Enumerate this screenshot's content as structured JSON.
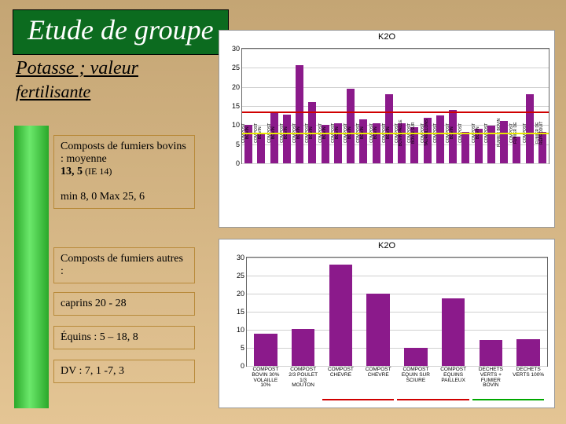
{
  "title": "Etude de groupe",
  "subtitle_line1": "Potasse ; valeur",
  "subtitle_line2": "fertilisante",
  "box1": {
    "line1": "Composts de fumiers bovins : moyenne",
    "line2_strong": "13, 5",
    "line2_rest": " (IE 14)",
    "line3": "min 8, 0  Max 25, 6"
  },
  "box2": {
    "line1": "Composts de fumiers autres :"
  },
  "box3": {
    "line1": "caprins 20 - 28"
  },
  "box4": {
    "line1": "Équins : 5 – 18, 8"
  },
  "box5": {
    "line1": "DV :  7, 1 -7, 3"
  },
  "chart_top": {
    "title": "K2O",
    "ylim": [
      0,
      30
    ],
    "ytick_step": 5,
    "bar_color": "#8b1a8b",
    "grid_color": "#d0d0d0",
    "reflines": [
      {
        "y": 13.5,
        "color": "#d00000"
      },
      {
        "y": 8.0,
        "color": "#e8e800"
      }
    ],
    "categories": [
      "COMPOST\\nBOVIN",
      "COMPOST\\nBOVIN",
      "COMPOST\\nBOVIN",
      "COMPOST\\nBOVIN",
      "COMPOST\\nBOVIN",
      "COMPOST\\nBOVIN",
      "COMPOST\\nBOVIN",
      "COMPOST\\nBOVIN",
      "COMPOST\\nBOVIN",
      "COMPOST\\nBOVIN",
      "COMPOST\\nBOVIN",
      "COMPOST\\nBOVIN",
      "COMPOST\\nBOVIN PAILLE",
      "COMPOST\\nBOVIN SUR",
      "COMPOST\\nTAUREILLONS",
      "COMPOST",
      "COMPOST\\nBOVIN",
      "COMPOST",
      "COMPOST\\nBOVIN",
      "COMPOST",
      "FUMIER BOVIN",
      "COMPOST\\nFUMIER DE",
      "COMPOST",
      "FUMIER DE\\nREPRODUIT"
    ],
    "values": [
      10,
      8,
      13.2,
      12.8,
      25.6,
      16,
      10,
      10.5,
      19.5,
      11.5,
      10.5,
      18,
      10.5,
      9.5,
      12,
      12.5,
      14,
      8.2,
      9.0,
      9.8,
      11.0,
      7.0,
      18.0,
      8.2
    ]
  },
  "chart_bottom": {
    "title": "K2O",
    "ylim": [
      0,
      30
    ],
    "ytick_step": 5,
    "bar_color": "#8b1a8b",
    "grid_color": "#d0d0d0",
    "categories": [
      "COMPOST\\nBOVIN 30%\\nVOLAILLE\\n10%",
      "COMPOST\\n2/3 POULET\\n1/3\\nMOUTON",
      "COMPOST\\nCHEVRE",
      "COMPOST\\nCHEVRE",
      "COMPOST\\nEQUIN SUR\\nSCIURE",
      "COMPOST\\nEQUINS\\nPAILLEUX",
      "DECHETS\\nVERTS +\\nFUMIER\\nBOVIN",
      "DECHETS\\nVERTS 100%"
    ],
    "values": [
      9.0,
      10.2,
      28.0,
      20.0,
      5.0,
      18.8,
      7.1,
      7.3
    ],
    "underlines": [
      {
        "start": 2,
        "end": 3,
        "color": "#d00000"
      },
      {
        "start": 4,
        "end": 5,
        "color": "#d00000"
      },
      {
        "start": 6,
        "end": 7,
        "color": "#00a800"
      }
    ]
  }
}
